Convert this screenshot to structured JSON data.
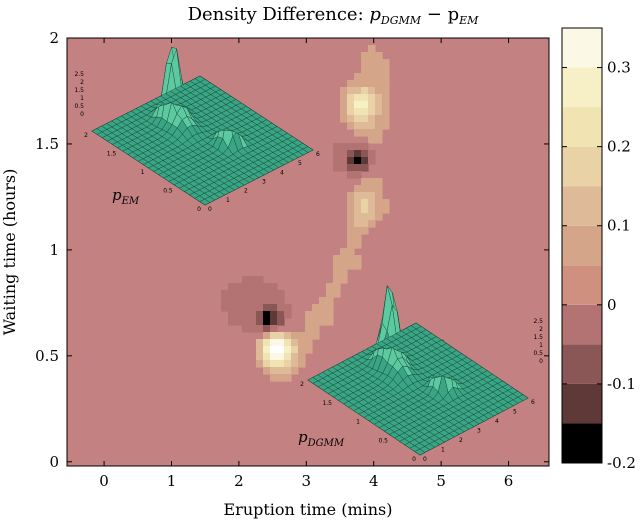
{
  "chart_data": {
    "type": "heatmap",
    "title": "Density Difference: p_DGMM − p_EM",
    "title_text": "Density Difference: ",
    "title_math": "p",
    "title_sub1": "DGMM",
    "title_minus": " − p",
    "title_sub2": "EM",
    "xlabel": "Eruption time (mins)",
    "ylabel": "Waiting time (hours)",
    "xlim": [
      -0.55,
      6.6
    ],
    "ylim": [
      -0.02,
      2.0
    ],
    "x_ticks": [
      0,
      1,
      2,
      3,
      4,
      5,
      6
    ],
    "y_ticks": [
      0,
      0.5,
      1,
      1.5,
      2
    ],
    "colorbar": {
      "levels": [
        -0.2,
        -0.15,
        -0.1,
        -0.05,
        0,
        0.05,
        0.1,
        0.15,
        0.2,
        0.25,
        0.3,
        0.35
      ],
      "tick_values": [
        -0.2,
        -0.1,
        0,
        0.1,
        0.2,
        0.3
      ],
      "tick_labels": [
        "-0.2",
        "-0.1",
        "0",
        "0.1",
        "0.2",
        "0.3"
      ],
      "colors": [
        "#000000",
        "#5f3838",
        "#8a5656",
        "#b47373",
        "#d09080",
        "#d5a58a",
        "#dfba98",
        "#e8d2a6",
        "#f0e4b2",
        "#f7f0c6",
        "#fbf9e6",
        "#ffffff"
      ]
    },
    "background_color": "#c48182",
    "features": [
      {
        "kind": "ridge",
        "x": [
          2.8,
          3.2,
          3.6,
          3.9,
          4.0,
          4.0
        ],
        "y": [
          0.48,
          0.68,
          0.95,
          1.22,
          1.6,
          1.9
        ],
        "level": 0.05
      },
      {
        "kind": "peak",
        "x": 2.55,
        "y": 0.53,
        "value": 0.35
      },
      {
        "kind": "trough",
        "x": 2.45,
        "y": 0.67,
        "value": -0.2
      },
      {
        "kind": "trough",
        "x": 3.78,
        "y": 1.43,
        "value": -0.2
      },
      {
        "kind": "peak",
        "x": 3.8,
        "y": 1.68,
        "value": 0.22
      },
      {
        "kind": "peak",
        "x": 3.85,
        "y": 1.2,
        "value": 0.1
      }
    ],
    "insets": [
      {
        "label": "p_EM",
        "label_main": "p",
        "label_sub": "EM",
        "axis_ticks_z": [
          "2.5",
          "2",
          "1.5",
          "1",
          "0.5",
          "0"
        ],
        "axis_ticks_a": [
          "2",
          "1.5",
          "1",
          "0.5",
          "0"
        ],
        "axis_ticks_b": [
          "0",
          "1",
          "2",
          "3",
          "4",
          "5",
          "6"
        ]
      },
      {
        "label": "p_DGMM",
        "label_main": "p",
        "label_sub": "DGMM",
        "axis_ticks_z": [
          "2.5",
          "2",
          "1.5",
          "1",
          "0.5",
          "0"
        ],
        "axis_ticks_a": [
          "2",
          "1.5",
          "1",
          "0.5",
          "0"
        ],
        "axis_ticks_b": [
          "0",
          "1",
          "2",
          "3",
          "4",
          "5",
          "6"
        ]
      }
    ],
    "legend": "none",
    "grid": false
  }
}
